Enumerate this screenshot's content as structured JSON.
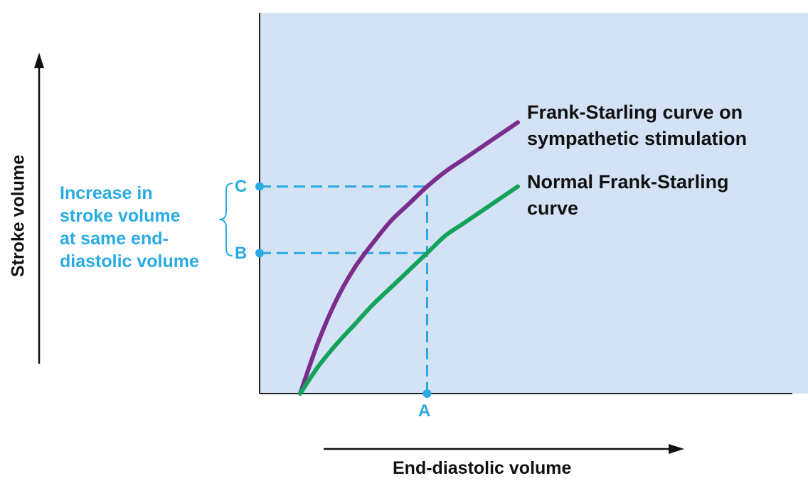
{
  "chart_data": {
    "type": "line",
    "title": "",
    "xlabel": "End-diastolic volume",
    "ylabel": "Stroke volume",
    "grid": false,
    "ticks": "none",
    "series": [
      {
        "name_lines": [
          "Frank-Starling curve on",
          "sympathetic stimulation"
        ],
        "color": "#7b2d8e",
        "x": [
          0.0,
          0.05,
          0.1,
          0.15,
          0.2,
          0.25,
          0.3,
          0.35,
          0.4,
          0.45,
          0.5,
          0.55,
          0.6
        ],
        "y": [
          0.0,
          0.21,
          0.38,
          0.51,
          0.61,
          0.7,
          0.77,
          0.84,
          0.9,
          0.95,
          1.0,
          1.05,
          1.1
        ]
      },
      {
        "name_lines": [
          "Normal Frank-Starling",
          "curve"
        ],
        "color": "#14a35a",
        "x": [
          0.0,
          0.05,
          0.1,
          0.15,
          0.2,
          0.25,
          0.3,
          0.35,
          0.4,
          0.45,
          0.5,
          0.55,
          0.6
        ],
        "y": [
          0.0,
          0.11,
          0.2,
          0.28,
          0.36,
          0.43,
          0.5,
          0.57,
          0.64,
          0.69,
          0.74,
          0.79,
          0.84
        ]
      }
    ],
    "points": {
      "A": {
        "label": "A",
        "x": 0.35
      },
      "B": {
        "label": "B",
        "y": 0.57
      },
      "C": {
        "label": "C",
        "y": 0.84
      }
    },
    "annotation": {
      "lines": [
        "Increase in",
        "stroke volume",
        "at same end-",
        "diastolic volume"
      ]
    },
    "colors": {
      "panel": "#d3e2f4",
      "annotation": "#29abe2",
      "text": "#111111"
    }
  }
}
